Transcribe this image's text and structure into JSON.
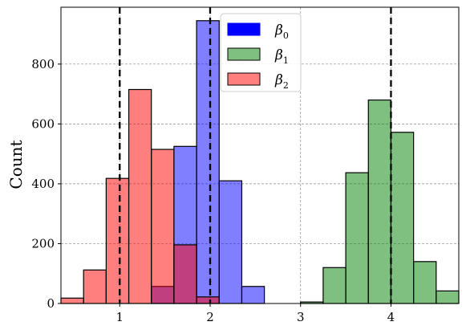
{
  "chart_data": {
    "type": "histogram",
    "title": "",
    "xlabel": "",
    "ylabel": "Count",
    "xlim": [
      0.35,
      4.75
    ],
    "ylim": [
      0,
      990
    ],
    "xticks": [
      1,
      2,
      3,
      4
    ],
    "yticks": [
      0,
      200,
      400,
      600,
      800
    ],
    "grid": true,
    "legend_position": "top-center",
    "vlines": [
      1,
      2,
      4
    ],
    "series": [
      {
        "name": "β0",
        "legend_label": "β0",
        "legend_base": "β",
        "legend_sub": "0",
        "color": "#0000ff",
        "bar_alpha": 0.5,
        "bins": [
          {
            "x0": 1.35,
            "x1": 1.6,
            "value": 57
          },
          {
            "x0": 1.6,
            "x1": 1.85,
            "value": 525
          },
          {
            "x0": 1.85,
            "x1": 2.1,
            "value": 945
          },
          {
            "x0": 2.1,
            "x1": 2.35,
            "value": 410
          },
          {
            "x0": 2.35,
            "x1": 2.6,
            "value": 57
          }
        ]
      },
      {
        "name": "β1",
        "legend_label": "β1",
        "legend_base": "β",
        "legend_sub": "1",
        "color": "#008000",
        "bar_alpha": 0.5,
        "bins": [
          {
            "x0": 3.0,
            "x1": 3.25,
            "value": 5
          },
          {
            "x0": 3.25,
            "x1": 3.5,
            "value": 120
          },
          {
            "x0": 3.5,
            "x1": 3.75,
            "value": 437
          },
          {
            "x0": 3.75,
            "x1": 4.0,
            "value": 680
          },
          {
            "x0": 4.0,
            "x1": 4.25,
            "value": 572
          },
          {
            "x0": 4.25,
            "x1": 4.5,
            "value": 140
          },
          {
            "x0": 4.5,
            "x1": 4.75,
            "value": 42
          }
        ]
      },
      {
        "name": "β2",
        "legend_label": "β2",
        "legend_base": "β",
        "legend_sub": "2",
        "color": "#ff0000",
        "bar_alpha": 0.5,
        "bins": [
          {
            "x0": 0.35,
            "x1": 0.6,
            "value": 18
          },
          {
            "x0": 0.6,
            "x1": 0.85,
            "value": 112
          },
          {
            "x0": 0.85,
            "x1": 1.1,
            "value": 418
          },
          {
            "x0": 1.1,
            "x1": 1.35,
            "value": 715
          },
          {
            "x0": 1.35,
            "x1": 1.6,
            "value": 515
          },
          {
            "x0": 1.6,
            "x1": 1.85,
            "value": 196
          },
          {
            "x0": 1.85,
            "x1": 2.1,
            "value": 22
          }
        ]
      }
    ]
  }
}
